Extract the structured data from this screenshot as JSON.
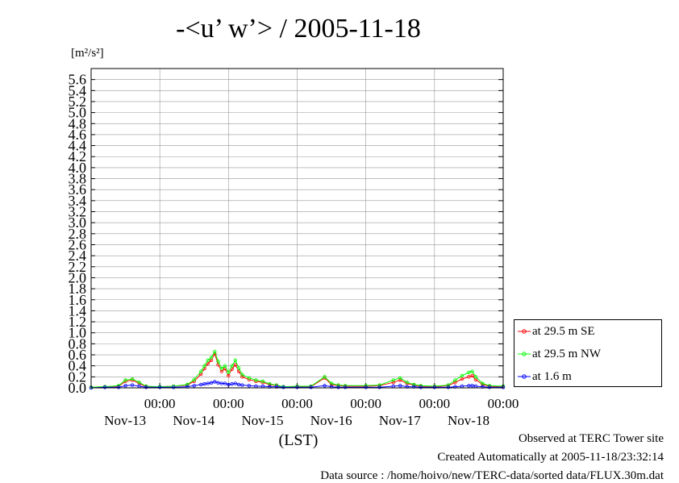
{
  "chart_data": {
    "type": "line",
    "title": "-<u’ w’> / 2005-11-18",
    "ylabel": "[m²/s²]",
    "xlabel": "(LST)",
    "ylim": [
      0,
      5.8
    ],
    "xlim": [
      0,
      6
    ],
    "grid": true,
    "legend_position": "right",
    "y_ticks": [
      "0.0",
      "0.2",
      "0.4",
      "0.6",
      "0.8",
      "1.0",
      "1.2",
      "1.4",
      "1.6",
      "1.8",
      "2.0",
      "2.2",
      "2.4",
      "2.6",
      "2.8",
      "3.0",
      "3.2",
      "3.4",
      "3.6",
      "3.8",
      "4.0",
      "4.2",
      "4.4",
      "4.6",
      "4.8",
      "5.0",
      "5.2",
      "5.4",
      "5.6"
    ],
    "x_ticks": [
      {
        "x": 1,
        "time": "00:00",
        "day": "Nov-13"
      },
      {
        "x": 2,
        "time": "00:00",
        "day": "Nov-14"
      },
      {
        "x": 3,
        "time": "00:00",
        "day": "Nov-15"
      },
      {
        "x": 4,
        "time": "00:00",
        "day": "Nov-16"
      },
      {
        "x": 5,
        "time": "00:00",
        "day": "Nov-17"
      },
      {
        "x": 6,
        "time": "00:00",
        "day": "Nov-18"
      }
    ],
    "x": [
      0.0,
      0.2,
      0.4,
      0.5,
      0.6,
      0.7,
      0.8,
      1.0,
      1.2,
      1.4,
      1.5,
      1.6,
      1.65,
      1.7,
      1.75,
      1.8,
      1.85,
      1.9,
      1.95,
      2.0,
      2.05,
      2.1,
      2.15,
      2.2,
      2.3,
      2.4,
      2.5,
      2.6,
      2.7,
      2.8,
      3.0,
      3.2,
      3.4,
      3.5,
      3.6,
      3.7,
      4.0,
      4.2,
      4.4,
      4.5,
      4.6,
      4.7,
      4.8,
      5.0,
      5.2,
      5.3,
      5.4,
      5.5,
      5.55,
      5.6,
      5.7,
      5.8,
      6.0
    ],
    "series": [
      {
        "name": "at 29.5 m SE",
        "color": "#ff0000",
        "values": [
          0.01,
          0.02,
          0.03,
          0.12,
          0.14,
          0.08,
          0.02,
          0.02,
          0.03,
          0.05,
          0.12,
          0.25,
          0.35,
          0.44,
          0.5,
          0.62,
          0.42,
          0.3,
          0.35,
          0.22,
          0.34,
          0.42,
          0.3,
          0.2,
          0.15,
          0.12,
          0.1,
          0.06,
          0.04,
          0.02,
          0.02,
          0.02,
          0.18,
          0.06,
          0.04,
          0.03,
          0.03,
          0.04,
          0.1,
          0.14,
          0.08,
          0.05,
          0.03,
          0.02,
          0.04,
          0.1,
          0.16,
          0.2,
          0.22,
          0.15,
          0.06,
          0.03,
          0.02
        ]
      },
      {
        "name": "at 29.5 m NW",
        "color": "#00ff00",
        "values": [
          0.01,
          0.02,
          0.04,
          0.14,
          0.16,
          0.1,
          0.03,
          0.02,
          0.03,
          0.06,
          0.15,
          0.3,
          0.4,
          0.5,
          0.55,
          0.66,
          0.48,
          0.35,
          0.4,
          0.28,
          0.4,
          0.5,
          0.36,
          0.24,
          0.18,
          0.14,
          0.12,
          0.07,
          0.05,
          0.02,
          0.03,
          0.03,
          0.2,
          0.08,
          0.05,
          0.04,
          0.04,
          0.05,
          0.14,
          0.18,
          0.1,
          0.06,
          0.04,
          0.03,
          0.05,
          0.14,
          0.22,
          0.28,
          0.3,
          0.2,
          0.08,
          0.04,
          0.03
        ]
      },
      {
        "name": "at 1.6 m",
        "color": "#0000ff",
        "values": [
          0.0,
          0.01,
          0.01,
          0.04,
          0.05,
          0.03,
          0.01,
          0.01,
          0.01,
          0.02,
          0.04,
          0.06,
          0.07,
          0.08,
          0.09,
          0.11,
          0.09,
          0.08,
          0.08,
          0.06,
          0.07,
          0.08,
          0.06,
          0.05,
          0.04,
          0.03,
          0.03,
          0.02,
          0.02,
          0.01,
          0.01,
          0.01,
          0.04,
          0.02,
          0.01,
          0.01,
          0.01,
          0.01,
          0.03,
          0.04,
          0.02,
          0.02,
          0.01,
          0.01,
          0.01,
          0.02,
          0.03,
          0.04,
          0.04,
          0.03,
          0.02,
          0.01,
          0.01
        ]
      }
    ]
  },
  "footer": {
    "line1": "Observed at TERC Tower site",
    "line2": "Created Automatically at 2005-11-18/23:32:14",
    "line3": "Data source : /home/hoivo/new/TERC-data/sorted  data/FLUX.30m.dat"
  }
}
